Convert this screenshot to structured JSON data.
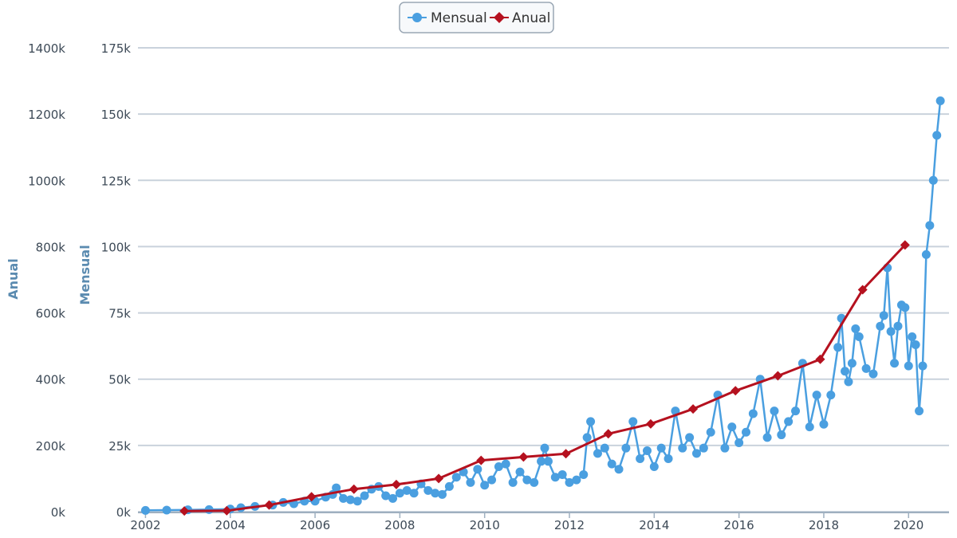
{
  "chart_data": {
    "type": "line",
    "title": "",
    "xlabel": "",
    "x_ticks": [
      "2002",
      "2004",
      "2006",
      "2008",
      "2010",
      "2012",
      "2014",
      "2016",
      "2018",
      "2020"
    ],
    "xlim": [
      "2001-12",
      "2020-12"
    ],
    "y_left": {
      "label": "Anual",
      "ticks": [
        "0k",
        "200k",
        "400k",
        "600k",
        "800k",
        "1000k",
        "1200k",
        "1400k"
      ],
      "ylim": [
        0,
        1400
      ]
    },
    "y_right": {
      "label": "Mensual",
      "ticks": [
        "0k",
        "25k",
        "50k",
        "75k",
        "100k",
        "125k",
        "150k",
        "175k"
      ],
      "ylim": [
        0,
        175
      ]
    },
    "grid": true,
    "legend_position": "top-center",
    "series": [
      {
        "name": "Mensual",
        "axis": "Mensual",
        "color": "#4a9fe0",
        "marker": "circle",
        "points": [
          [
            "2002-01",
            0.5
          ],
          [
            "2002-07",
            0.6
          ],
          [
            "2003-01",
            0.7
          ],
          [
            "2003-07",
            0.8
          ],
          [
            "2004-01",
            1.0
          ],
          [
            "2004-04",
            1.5
          ],
          [
            "2004-08",
            2.0
          ],
          [
            "2005-01",
            2.5
          ],
          [
            "2005-04",
            3.5
          ],
          [
            "2005-07",
            3.0
          ],
          [
            "2005-10",
            4.0
          ],
          [
            "2006-01",
            4.0
          ],
          [
            "2006-04",
            5.5
          ],
          [
            "2006-06",
            6.5
          ],
          [
            "2006-07",
            9.0
          ],
          [
            "2006-09",
            5.0
          ],
          [
            "2006-11",
            4.5
          ],
          [
            "2007-01",
            4.0
          ],
          [
            "2007-03",
            6.0
          ],
          [
            "2007-05",
            8.5
          ],
          [
            "2007-07",
            9.5
          ],
          [
            "2007-09",
            6.0
          ],
          [
            "2007-11",
            5.0
          ],
          [
            "2008-01",
            7.0
          ],
          [
            "2008-03",
            8.0
          ],
          [
            "2008-05",
            7.0
          ],
          [
            "2008-07",
            10.5
          ],
          [
            "2008-09",
            8.0
          ],
          [
            "2008-11",
            7.0
          ],
          [
            "2009-01",
            6.5
          ],
          [
            "2009-03",
            9.5
          ],
          [
            "2009-05",
            13.0
          ],
          [
            "2009-07",
            15.0
          ],
          [
            "2009-09",
            11.0
          ],
          [
            "2009-11",
            16.0
          ],
          [
            "2010-01",
            10.0
          ],
          [
            "2010-03",
            12.0
          ],
          [
            "2010-05",
            17.0
          ],
          [
            "2010-07",
            18.0
          ],
          [
            "2010-09",
            11.0
          ],
          [
            "2010-11",
            15.0
          ],
          [
            "2011-01",
            12.0
          ],
          [
            "2011-03",
            11.0
          ],
          [
            "2011-05",
            19.0
          ],
          [
            "2011-06",
            24.0
          ],
          [
            "2011-07",
            19.0
          ],
          [
            "2011-09",
            13.0
          ],
          [
            "2011-11",
            14.0
          ],
          [
            "2012-01",
            11.0
          ],
          [
            "2012-03",
            12.0
          ],
          [
            "2012-05",
            14.0
          ],
          [
            "2012-06",
            28.0
          ],
          [
            "2012-07",
            34.0
          ],
          [
            "2012-09",
            22.0
          ],
          [
            "2012-11",
            24.0
          ],
          [
            "2013-01",
            18.0
          ],
          [
            "2013-03",
            16.0
          ],
          [
            "2013-05",
            24.0
          ],
          [
            "2013-07",
            34.0
          ],
          [
            "2013-09",
            20.0
          ],
          [
            "2013-11",
            23.0
          ],
          [
            "2014-01",
            17.0
          ],
          [
            "2014-03",
            24.0
          ],
          [
            "2014-05",
            20.0
          ],
          [
            "2014-07",
            38.0
          ],
          [
            "2014-09",
            24.0
          ],
          [
            "2014-11",
            28.0
          ],
          [
            "2015-01",
            22.0
          ],
          [
            "2015-03",
            24.0
          ],
          [
            "2015-05",
            30.0
          ],
          [
            "2015-07",
            44.0
          ],
          [
            "2015-09",
            24.0
          ],
          [
            "2015-11",
            32.0
          ],
          [
            "2016-01",
            26.0
          ],
          [
            "2016-03",
            30.0
          ],
          [
            "2016-05",
            37.0
          ],
          [
            "2016-07",
            50.0
          ],
          [
            "2016-09",
            28.0
          ],
          [
            "2016-11",
            38.0
          ],
          [
            "2017-01",
            29.0
          ],
          [
            "2017-03",
            34.0
          ],
          [
            "2017-05",
            38.0
          ],
          [
            "2017-07",
            56.0
          ],
          [
            "2017-09",
            32.0
          ],
          [
            "2017-11",
            44.0
          ],
          [
            "2018-01",
            33.0
          ],
          [
            "2018-03",
            44.0
          ],
          [
            "2018-05",
            62.0
          ],
          [
            "2018-06",
            73.0
          ],
          [
            "2018-07",
            53.0
          ],
          [
            "2018-08",
            49.0
          ],
          [
            "2018-09",
            56.0
          ],
          [
            "2018-10",
            69.0
          ],
          [
            "2018-11",
            66.0
          ],
          [
            "2019-01",
            54.0
          ],
          [
            "2019-03",
            52.0
          ],
          [
            "2019-05",
            70.0
          ],
          [
            "2019-06",
            74.0
          ],
          [
            "2019-07",
            92.0
          ],
          [
            "2019-08",
            68.0
          ],
          [
            "2019-09",
            56.0
          ],
          [
            "2019-10",
            70.0
          ],
          [
            "2019-11",
            78.0
          ],
          [
            "2019-12",
            77.0
          ],
          [
            "2020-01",
            55.0
          ],
          [
            "2020-02",
            66.0
          ],
          [
            "2020-03",
            63.0
          ],
          [
            "2020-04",
            38.0
          ],
          [
            "2020-05",
            55.0
          ],
          [
            "2020-06",
            97.0
          ],
          [
            "2020-07",
            108.0
          ],
          [
            "2020-08",
            125.0
          ],
          [
            "2020-09",
            142.0
          ],
          [
            "2020-10",
            155.0
          ]
        ]
      },
      {
        "name": "Anual",
        "axis": "Anual",
        "color": "#b5111f",
        "marker": "diamond",
        "points": [
          [
            "2002-12",
            2
          ],
          [
            "2003-12",
            3
          ],
          [
            "2004-12",
            20
          ],
          [
            "2005-12",
            45
          ],
          [
            "2006-12",
            68
          ],
          [
            "2007-12",
            82
          ],
          [
            "2008-12",
            100
          ],
          [
            "2009-12",
            155
          ],
          [
            "2010-12",
            165
          ],
          [
            "2011-12",
            175
          ],
          [
            "2012-12",
            235
          ],
          [
            "2013-12",
            265
          ],
          [
            "2014-12",
            310
          ],
          [
            "2015-12",
            365
          ],
          [
            "2016-12",
            410
          ],
          [
            "2017-12",
            460
          ],
          [
            "2018-12",
            670
          ],
          [
            "2019-12",
            805
          ]
        ]
      }
    ]
  }
}
